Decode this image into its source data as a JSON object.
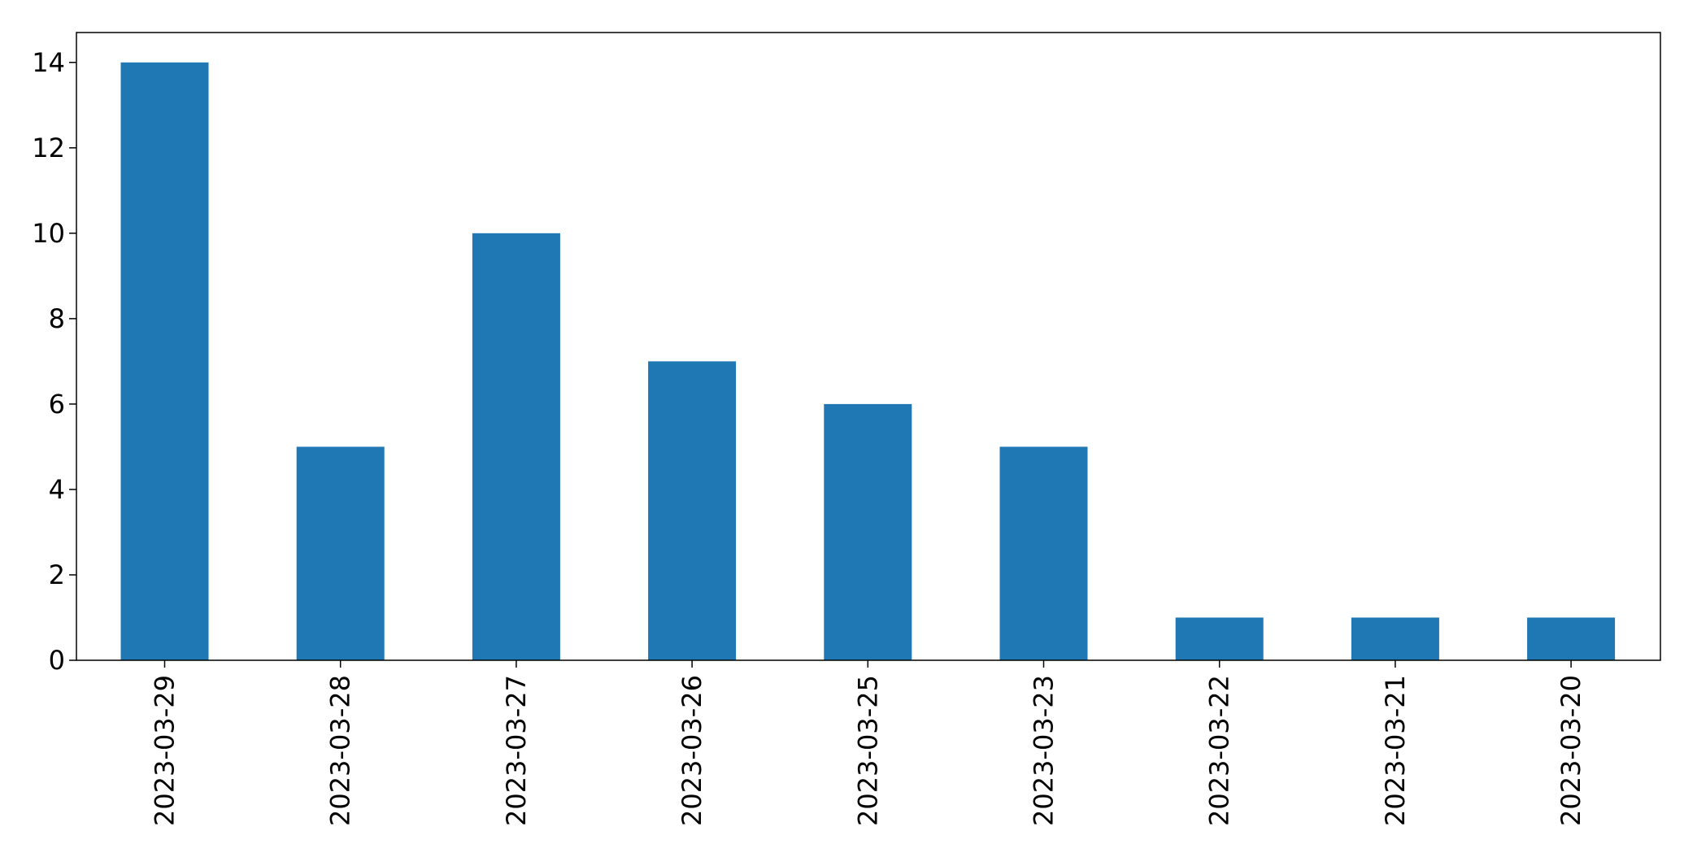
{
  "chart_data": {
    "type": "bar",
    "title": "",
    "xlabel": "",
    "ylabel": "",
    "categories": [
      "2023-03-29",
      "2023-03-28",
      "2023-03-27",
      "2023-03-26",
      "2023-03-25",
      "2023-03-23",
      "2023-03-22",
      "2023-03-21",
      "2023-03-20"
    ],
    "values": [
      14,
      5,
      10,
      7,
      6,
      5,
      1,
      1,
      1
    ],
    "ylim": [
      0,
      14.7
    ],
    "yticks": [
      0,
      2,
      4,
      6,
      8,
      10,
      12,
      14
    ],
    "bar_color": "#1f77b4",
    "grid": false,
    "legend": "none"
  }
}
